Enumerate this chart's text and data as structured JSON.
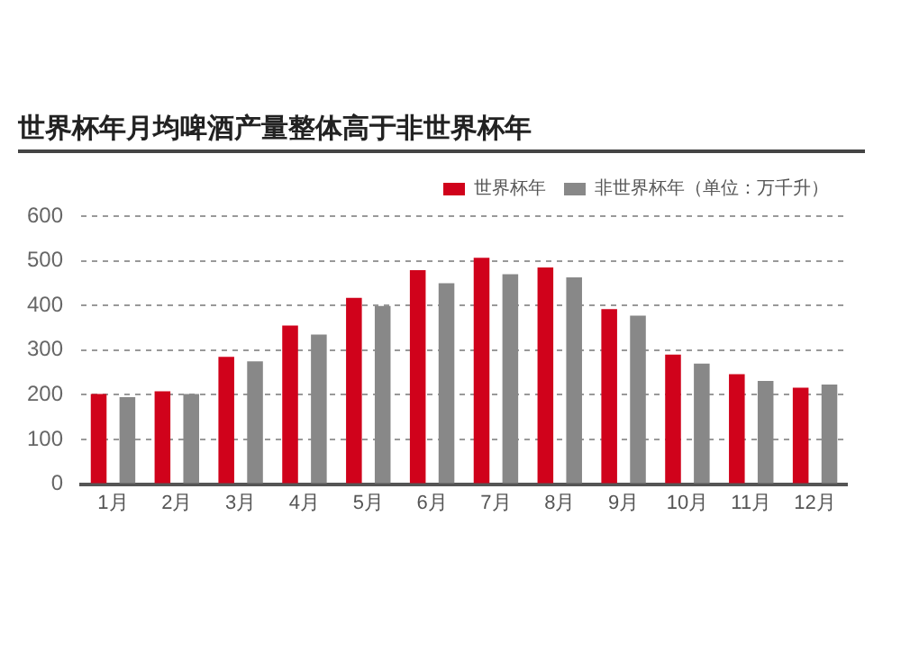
{
  "chart_data": {
    "type": "bar",
    "title": "世界杯年月均啤酒产量整体高于非世界杯年",
    "categories": [
      "1月",
      "2月",
      "3月",
      "4月",
      "5月",
      "6月",
      "7月",
      "8月",
      "9月",
      "10月",
      "11月",
      "12月"
    ],
    "series": [
      {
        "name": "世界杯年",
        "color": "#d0021b",
        "values": [
          202,
          208,
          285,
          355,
          417,
          479,
          507,
          485,
          392,
          290,
          246,
          216
        ]
      },
      {
        "name": "非世界杯年（单位：万千升）",
        "color": "#888888",
        "values": [
          195,
          202,
          275,
          335,
          399,
          450,
          470,
          463,
          377,
          270,
          231,
          223
        ]
      }
    ],
    "ylim": [
      0,
      600
    ],
    "yticks": [
      0,
      100,
      200,
      300,
      400,
      500,
      600
    ],
    "grid": "y",
    "legend": "top right"
  }
}
